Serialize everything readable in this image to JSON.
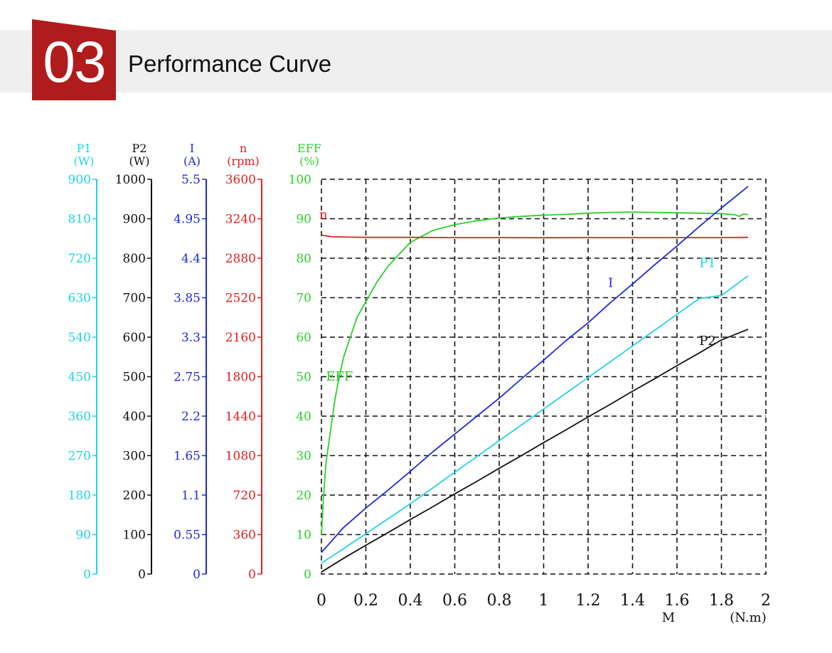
{
  "header": {
    "number": "03",
    "title": "Performance Curve"
  },
  "colors": {
    "badge": "#b01c1c",
    "band": "#efefef",
    "P1": "#22d3e6",
    "P2": "#111111",
    "I": "#1f2bd6",
    "n": "#e02020",
    "EFF": "#2bd12b",
    "grid": "#111111"
  },
  "chart_data": {
    "type": "line",
    "xlabel": "M",
    "xunit": "(N.m)",
    "xlim": [
      0,
      2
    ],
    "x_ticks": [
      "0",
      "0.2",
      "0.4",
      "0.6",
      "0.8",
      "1",
      "1.2",
      "1.4",
      "1.6",
      "1.8",
      "2"
    ],
    "grid": true,
    "y_axes": [
      {
        "key": "P1",
        "label": "P1",
        "unit": "(W)",
        "range": [
          0,
          900
        ],
        "ticks": [
          "900",
          "810",
          "720",
          "630",
          "540",
          "450",
          "360",
          "270",
          "180",
          "90",
          "0"
        ]
      },
      {
        "key": "P2",
        "label": "P2",
        "unit": "(W)",
        "range": [
          0,
          1000
        ],
        "ticks": [
          "1000",
          "900",
          "800",
          "700",
          "600",
          "500",
          "400",
          "300",
          "200",
          "100",
          "0"
        ]
      },
      {
        "key": "I",
        "label": "I",
        "unit": "(A)",
        "range": [
          0,
          5.5
        ],
        "ticks": [
          "5.5",
          "4.95",
          "4.4",
          "3.85",
          "3.3",
          "2.75",
          "2.2",
          "1.65",
          "1.1",
          "0.55",
          "0"
        ]
      },
      {
        "key": "n",
        "label": "n",
        "unit": "(rpm)",
        "range": [
          0,
          3600
        ],
        "ticks": [
          "3600",
          "3240",
          "2880",
          "2520",
          "2160",
          "1800",
          "1440",
          "1080",
          "720",
          "360",
          "0"
        ]
      },
      {
        "key": "EFF",
        "label": "EFF",
        "unit": "(%)",
        "range": [
          0,
          100
        ],
        "ticks": [
          "100",
          "90",
          "80",
          "70",
          "60",
          "50",
          "40",
          "30",
          "20",
          "10",
          "0"
        ]
      }
    ],
    "series": [
      {
        "name": "EFF",
        "axis": "EFF",
        "label_at": [
          0.02,
          49
        ],
        "x": [
          0,
          0.01,
          0.02,
          0.04,
          0.06,
          0.08,
          0.1,
          0.13,
          0.16,
          0.2,
          0.25,
          0.3,
          0.35,
          0.4,
          0.5,
          0.6,
          0.7,
          0.8,
          0.9,
          1.0,
          1.1,
          1.2,
          1.3,
          1.4,
          1.5,
          1.6,
          1.7,
          1.8,
          1.86,
          1.88,
          1.9,
          1.92
        ],
        "y": [
          10,
          20,
          28,
          36,
          44,
          50,
          55,
          60,
          65,
          69,
          74,
          78,
          81,
          84,
          87,
          88.5,
          89.5,
          90.2,
          90.6,
          90.9,
          91.1,
          91.4,
          91.6,
          91.7,
          91.6,
          91.5,
          91.4,
          91.3,
          91.0,
          90.6,
          91.2,
          91.0
        ]
      },
      {
        "name": "n",
        "axis": "n",
        "label_at": [
          -0.01,
          3240
        ],
        "x": [
          0,
          0.05,
          0.2,
          0.4,
          0.6,
          0.8,
          1.0,
          1.2,
          1.4,
          1.6,
          1.8,
          1.92
        ],
        "y": [
          3090,
          3075,
          3070,
          3070,
          3068,
          3068,
          3067,
          3068,
          3068,
          3068,
          3068,
          3070
        ]
      },
      {
        "name": "I",
        "axis": "I",
        "label_at": [
          1.29,
          4.0
        ],
        "x": [
          0,
          0.1,
          0.2,
          0.3,
          0.4,
          0.5,
          0.6,
          0.7,
          0.8,
          0.9,
          1.0,
          1.1,
          1.2,
          1.3,
          1.4,
          1.5,
          1.6,
          1.7,
          1.8,
          1.92
        ],
        "y": [
          0.3,
          0.65,
          0.92,
          1.17,
          1.43,
          1.7,
          1.95,
          2.2,
          2.45,
          2.72,
          2.98,
          3.25,
          3.5,
          3.78,
          4.04,
          4.31,
          4.57,
          4.84,
          5.1,
          5.4
        ]
      },
      {
        "name": "P1",
        "axis": "P1",
        "label_at": [
          1.7,
          700
        ],
        "x": [
          0,
          0.1,
          0.2,
          0.3,
          0.4,
          0.5,
          0.6,
          0.7,
          0.8,
          0.9,
          1.0,
          1.1,
          1.2,
          1.3,
          1.4,
          1.5,
          1.6,
          1.7,
          1.8,
          1.92
        ],
        "y": [
          25,
          58,
          92,
          126,
          160,
          196,
          232,
          268,
          304,
          340,
          376,
          412,
          448,
          484,
          520,
          556,
          592,
          628,
          635,
          680
        ]
      },
      {
        "name": "P2",
        "axis": "P2",
        "label_at": [
          1.7,
          580
        ],
        "x": [
          0,
          0.1,
          0.2,
          0.3,
          0.4,
          0.5,
          0.6,
          0.7,
          0.8,
          0.9,
          1.0,
          1.1,
          1.2,
          1.3,
          1.4,
          1.5,
          1.6,
          1.7,
          1.8,
          1.92
        ],
        "y": [
          5,
          40,
          73,
          105,
          138,
          170,
          203,
          235,
          268,
          300,
          333,
          365,
          398,
          430,
          463,
          495,
          528,
          560,
          593,
          620
        ]
      }
    ]
  }
}
